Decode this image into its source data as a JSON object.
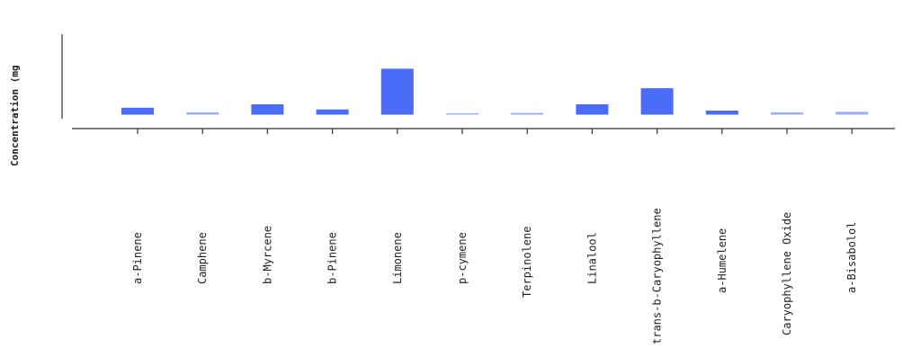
{
  "chart_data": {
    "type": "bar",
    "title": "",
    "xlabel": "",
    "ylabel": "Concentration (mg",
    "categories": [
      "a-Pinene",
      "Camphene",
      "b-Myrcene",
      "b-Pinene",
      "Limonene",
      "p-cymene",
      "Terpinolene",
      "Linalool",
      "trans-b-Caryophyllene",
      "a-Humelene",
      "Caryophyllene Oxide",
      "a-Bisabolol"
    ],
    "values": [
      0.6,
      0.2,
      0.9,
      0.45,
      4.0,
      0.05,
      0.15,
      0.9,
      2.3,
      0.35,
      0.2,
      0.25
    ],
    "ylim": [
      0,
      7
    ],
    "grid": false,
    "colors": {
      "bar": "#4a6cf7",
      "bar_light": "#9fb0f7",
      "axis": "#333333"
    }
  }
}
